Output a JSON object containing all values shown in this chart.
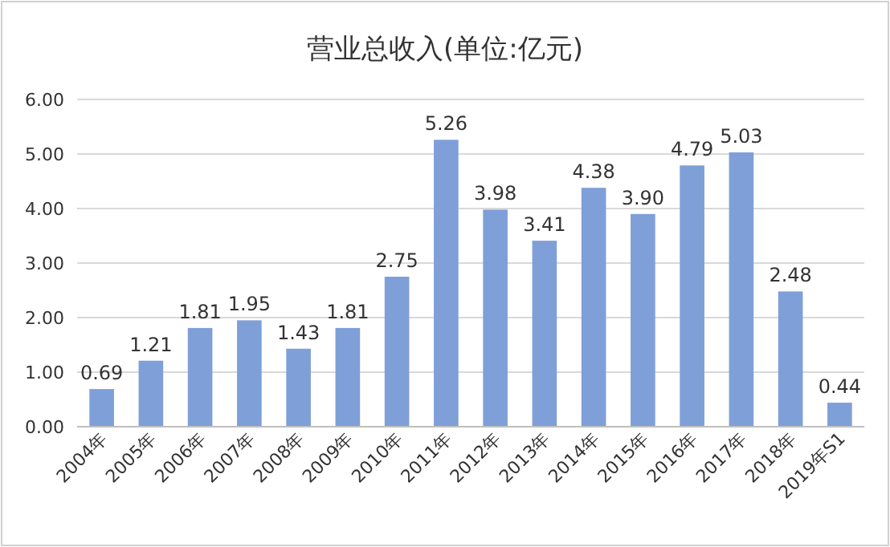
{
  "chart_data": {
    "type": "bar",
    "title": "营业总收入(单位:亿元)",
    "categories": [
      "2004年",
      "2005年",
      "2006年",
      "2007年",
      "2008年",
      "2009年",
      "2010年",
      "2011年",
      "2012年",
      "2013年",
      "2014年",
      "2015年",
      "2016年",
      "2017年",
      "2018年",
      "2019年S1"
    ],
    "values": [
      0.69,
      1.21,
      1.81,
      1.95,
      1.43,
      1.81,
      2.75,
      5.26,
      3.98,
      3.41,
      4.38,
      3.9,
      4.79,
      5.03,
      2.48,
      0.44
    ],
    "value_labels": [
      "0.69",
      "1.21",
      "1.81",
      "1.95",
      "1.43",
      "1.81",
      "2.75",
      "5.26",
      "3.98",
      "3.41",
      "4.38",
      "3.90",
      "4.79",
      "5.03",
      "2.48",
      "0.44"
    ],
    "color": "#7f9fd8",
    "ylim": [
      0,
      6
    ],
    "yticks": [
      {
        "value": 0,
        "label": "0.00"
      },
      {
        "value": 1,
        "label": "1.00"
      },
      {
        "value": 2,
        "label": "2.00"
      },
      {
        "value": 3,
        "label": "3.00"
      },
      {
        "value": 4,
        "label": "4.00"
      },
      {
        "value": 5,
        "label": "5.00"
      },
      {
        "value": 6,
        "label": "6.00"
      }
    ],
    "grid": "y"
  }
}
